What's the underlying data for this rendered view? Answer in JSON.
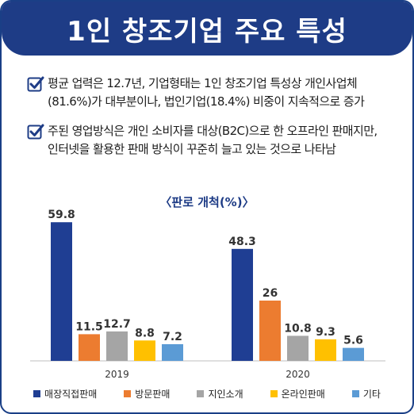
{
  "header": {
    "title": "1인 창조기업 주요 특성"
  },
  "bullets": [
    {
      "line1": "평균 업력은 12.7년, 기업형태는 1인 창조기업 특성상 개인사업체",
      "line2": "(81.6%)가 대부분이나, 법인기업(18.4%) 비중이 지속적으로 증가"
    },
    {
      "line1": "주된 영업방식은 개인 소비자를 대상(B2C)으로 한 오프라인 판매지만,",
      "line2": "인터넷을 활용한 판매 방식이 꾸준히 늘고 있는 것으로 나타남"
    }
  ],
  "icons": {
    "bullet": "checkmark-icon"
  },
  "colors": {
    "brand": "#1e3c86",
    "series": [
      "#1f3e93",
      "#ec7c30",
      "#a5a5a5",
      "#ffc000",
      "#5b9bd5"
    ]
  },
  "chart_data": {
    "type": "bar",
    "title": "〈판로 개척(%)〉",
    "categories": [
      "2019",
      "2020"
    ],
    "series": [
      {
        "name": "매장직접판매",
        "values": [
          59.8,
          48.3
        ]
      },
      {
        "name": "방문판매",
        "values": [
          11.5,
          26
        ]
      },
      {
        "name": "지인소개",
        "values": [
          12.7,
          10.8
        ]
      },
      {
        "name": "온라인판매",
        "values": [
          8.8,
          9.3
        ]
      },
      {
        "name": "기타",
        "values": [
          7.2,
          5.6
        ]
      }
    ],
    "value_labels": [
      [
        "59.8",
        "48.3"
      ],
      [
        "11.5",
        "26"
      ],
      [
        "12.7",
        "10.8"
      ],
      [
        "8.8",
        "9.3"
      ],
      [
        "7.2",
        "5.6"
      ]
    ],
    "ylim": [
      0,
      65
    ],
    "grid": false,
    "legend": "bottom"
  }
}
